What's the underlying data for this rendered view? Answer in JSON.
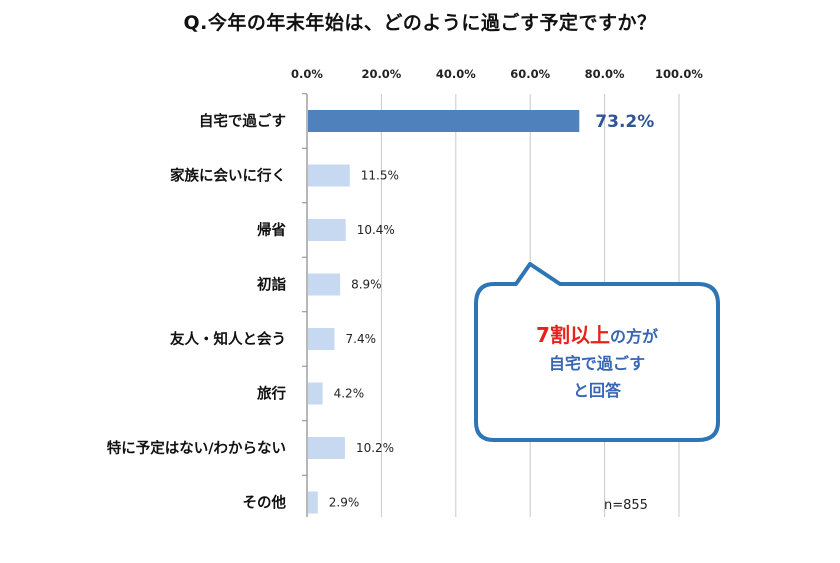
{
  "title": "Q.今年の年末年始は、どのように過ごす予定ですか？",
  "chart_data": {
    "type": "bar",
    "orientation": "horizontal",
    "title": "Q.今年の年末年始は、どのように過ごす予定ですか？",
    "xlim": [
      0,
      100
    ],
    "tick_labels": [
      "0.0%",
      "20.0%",
      "40.0%",
      "60.0%",
      "80.0%",
      "100.0%"
    ],
    "categories": [
      "自宅で過ごす",
      "家族に会いに行く",
      "帰省",
      "初詣",
      "友人・知人と会う",
      "旅行",
      "特に予定はない/わからない",
      "その他"
    ],
    "values": [
      73.2,
      11.5,
      10.4,
      8.9,
      7.4,
      4.2,
      10.2,
      2.9
    ],
    "value_labels": [
      "73.2%",
      "11.5%",
      "10.4%",
      "8.9%",
      "7.4%",
      "4.2%",
      "10.2%",
      "2.9%"
    ],
    "highlight_index": 0,
    "grid": true,
    "colors": {
      "highlight": "#4f81bd",
      "normal": "#c6d9f1",
      "highlight_label": "#2f5597"
    }
  },
  "callout": {
    "line1_emphasis": "7割以上",
    "line1_rest": "の方が",
    "line2": "自宅で過ごす",
    "line3": "と回答",
    "border_color": "#2e75b6",
    "emphasis_color": "#e8211b",
    "text_color": "#3866b5"
  },
  "sample_size": "n=855"
}
